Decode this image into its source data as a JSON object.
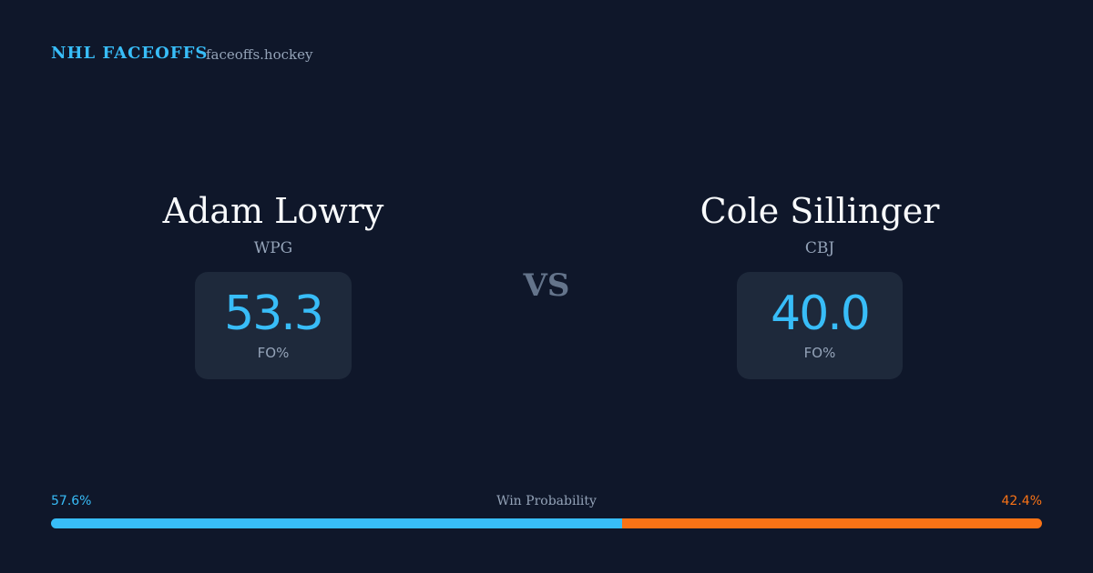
{
  "header": {
    "brand": "NHL FACEOFFS",
    "site": "faceoffs.hockey"
  },
  "players": [
    {
      "name": "Adam Lowry",
      "team": "WPG",
      "fo_pct": "53.3",
      "fo_label": "FO%"
    },
    {
      "name": "Cole Sillinger",
      "team": "CBJ",
      "fo_pct": "40.0",
      "fo_label": "FO%"
    }
  ],
  "vs": "VS",
  "win_probability": {
    "label": "Win Probability",
    "home": {
      "value": 57.6,
      "label": "57.6%",
      "color": "#38bdf8"
    },
    "away": {
      "value": 42.4,
      "label": "42.4%",
      "color": "#f97316"
    }
  }
}
